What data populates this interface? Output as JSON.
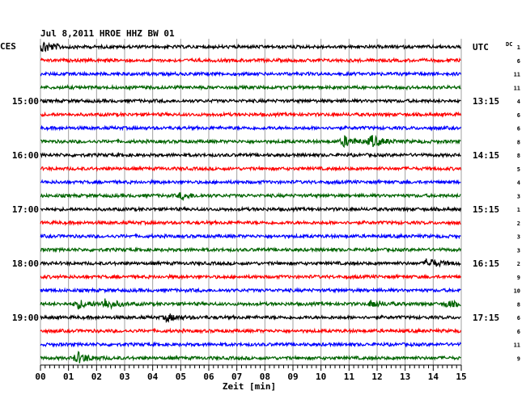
{
  "chart_data": {
    "type": "line",
    "title": "Jul 8,2011   HROE HHZ BW 01",
    "left_timezone": "CES",
    "right_timezone": "UTC",
    "dc_label": "DC",
    "xlabel": "Zeit [min]",
    "xlim": [
      0,
      15
    ],
    "x_ticks": [
      "00",
      "01",
      "02",
      "03",
      "04",
      "05",
      "06",
      "07",
      "08",
      "09",
      "10",
      "11",
      "12",
      "13",
      "14",
      "15"
    ],
    "trace_colors": [
      "#000000",
      "#ff0000",
      "#0000ff",
      "#006400"
    ],
    "traces_per_hour": 4,
    "left_hour_labels": [
      {
        "trace_index": 4,
        "label": "15:00"
      },
      {
        "trace_index": 8,
        "label": "16:00"
      },
      {
        "trace_index": 12,
        "label": "17:00"
      },
      {
        "trace_index": 16,
        "label": "18:00"
      },
      {
        "trace_index": 20,
        "label": "19:00"
      }
    ],
    "right_hour_labels": [
      {
        "trace_index": 0,
        "label": "UTC"
      },
      {
        "trace_index": 4,
        "label": "13:15"
      },
      {
        "trace_index": 8,
        "label": "14:15"
      },
      {
        "trace_index": 12,
        "label": "15:15"
      },
      {
        "trace_index": 16,
        "label": "16:15"
      },
      {
        "trace_index": 20,
        "label": "17:15"
      }
    ],
    "dc_offsets": [
      "1",
      "6",
      "11",
      "11",
      "4",
      "6",
      "6",
      "8",
      "8",
      "5",
      "4",
      "3",
      "1",
      "2",
      "3",
      "3",
      "2",
      "9",
      "10",
      "8",
      "6",
      "6",
      "11",
      "9"
    ],
    "events": [
      {
        "trace_index": 0,
        "minute": 0.1,
        "amplitude": 1.0
      },
      {
        "trace_index": 7,
        "minute": 10.8,
        "amplitude": 0.9
      },
      {
        "trace_index": 7,
        "minute": 11.8,
        "amplitude": 1.0
      },
      {
        "trace_index": 11,
        "minute": 5.0,
        "amplitude": 0.5
      },
      {
        "trace_index": 16,
        "minute": 13.8,
        "amplitude": 0.9
      },
      {
        "trace_index": 19,
        "minute": 1.3,
        "amplitude": 0.8
      },
      {
        "trace_index": 19,
        "minute": 2.3,
        "amplitude": 0.9
      },
      {
        "trace_index": 19,
        "minute": 11.8,
        "amplitude": 0.6
      },
      {
        "trace_index": 19,
        "minute": 14.5,
        "amplitude": 0.5
      },
      {
        "trace_index": 20,
        "minute": 4.5,
        "amplitude": 0.6
      },
      {
        "trace_index": 23,
        "minute": 1.3,
        "amplitude": 1.0
      }
    ]
  }
}
